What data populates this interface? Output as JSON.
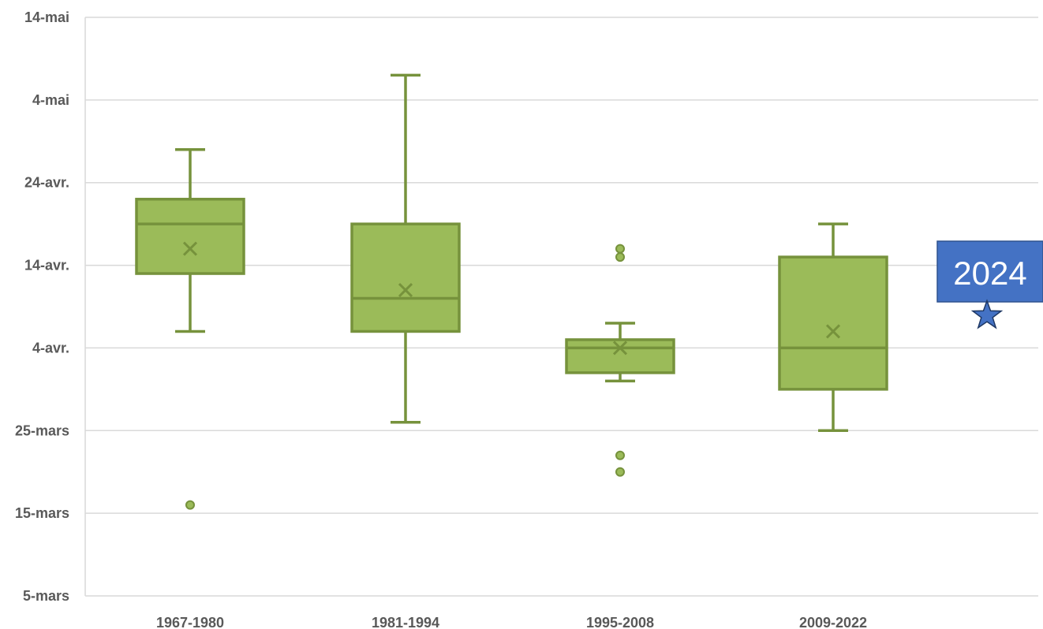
{
  "chart_data": {
    "type": "box",
    "title": "",
    "xlabel": "",
    "ylabel": "",
    "y_unit": "day",
    "y_ticks": [
      {
        "date": "2024-03-05",
        "label": "5-mars"
      },
      {
        "date": "2024-03-15",
        "label": "15-mars"
      },
      {
        "date": "2024-03-25",
        "label": "25-mars"
      },
      {
        "date": "2024-04-04",
        "label": "4-avr."
      },
      {
        "date": "2024-04-14",
        "label": "14-avr."
      },
      {
        "date": "2024-04-24",
        "label": "24-avr."
      },
      {
        "date": "2024-05-04",
        "label": "4-mai"
      },
      {
        "date": "2024-05-14",
        "label": "14-mai"
      }
    ],
    "ylim": [
      "2024-03-05",
      "2024-05-14"
    ],
    "grid": true,
    "color": "#9BBB59",
    "stroke_color": "#76923C",
    "categories": [
      "1967-1980",
      "1981-1994",
      "1995-2008",
      "2009-2022"
    ],
    "boxes": [
      {
        "category": "1967-1980",
        "whisker_low": "2024-04-06",
        "q1": "2024-04-13",
        "median": "2024-04-19",
        "q3": "2024-04-22",
        "whisker_high": "2024-04-28",
        "mean": "2024-04-16",
        "outliers": [
          "2024-03-16"
        ]
      },
      {
        "category": "1981-1994",
        "whisker_low": "2024-03-26",
        "q1": "2024-04-06",
        "median": "2024-04-10",
        "q3": "2024-04-19",
        "whisker_high": "2024-05-07",
        "mean": "2024-04-11",
        "outliers": []
      },
      {
        "category": "1995-2008",
        "whisker_low": "2024-03-31",
        "q1": "2024-04-01",
        "median": "2024-04-04",
        "q3": "2024-04-05",
        "whisker_high": "2024-04-07",
        "mean": "2024-04-04",
        "outliers": [
          "2024-04-16",
          "2024-04-15",
          "2024-03-22",
          "2024-03-20"
        ]
      },
      {
        "category": "2009-2022",
        "whisker_low": "2024-03-25",
        "q1": "2024-03-30",
        "median": "2024-04-04",
        "q3": "2024-04-15",
        "whisker_high": "2024-04-19",
        "mean": "2024-04-06",
        "outliers": []
      }
    ],
    "highlight": {
      "label": "2024",
      "value": "2024-04-06",
      "marker": "star-icon",
      "color": "#4472C4"
    }
  }
}
